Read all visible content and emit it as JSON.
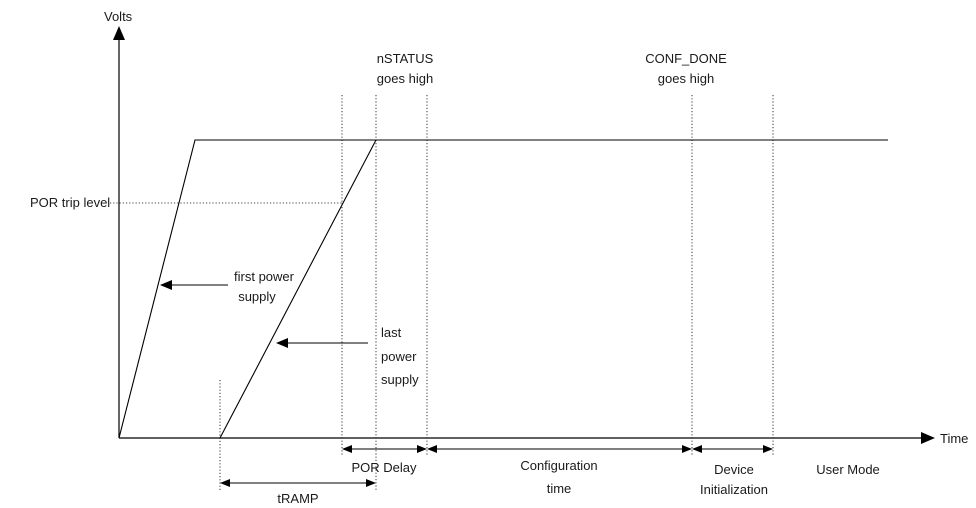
{
  "labels": {
    "y_axis": "Volts",
    "x_axis": "Time",
    "por_trip": "POR trip level",
    "first_supply": [
      "first power",
      "supply"
    ],
    "last_supply": [
      "last",
      "power",
      "supply"
    ],
    "nstatus": [
      "nSTATUS",
      "goes high"
    ],
    "conf_done": [
      "CONF_DONE",
      "goes high"
    ]
  },
  "intervals": {
    "tramp": "tRAMP",
    "por_delay": "POR Delay",
    "configuration": [
      "Configuration",
      "time"
    ],
    "device_init": [
      "Device",
      "Initialization"
    ],
    "user_mode": "User Mode"
  }
}
